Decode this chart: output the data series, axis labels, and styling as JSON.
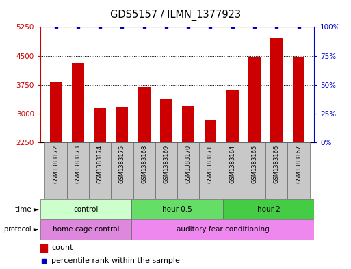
{
  "title": "GDS5157 / ILMN_1377923",
  "samples": [
    "GSM1383172",
    "GSM1383173",
    "GSM1383174",
    "GSM1383175",
    "GSM1383168",
    "GSM1383169",
    "GSM1383170",
    "GSM1383171",
    "GSM1383164",
    "GSM1383165",
    "GSM1383166",
    "GSM1383167"
  ],
  "counts": [
    3820,
    4320,
    3150,
    3160,
    3700,
    3370,
    3190,
    2840,
    3620,
    4480,
    4950,
    4480
  ],
  "percentiles": [
    100,
    100,
    100,
    100,
    100,
    100,
    100,
    100,
    100,
    100,
    100,
    100
  ],
  "ylim_left": [
    2250,
    5250
  ],
  "ylim_right": [
    0,
    100
  ],
  "yticks_left": [
    2250,
    3000,
    3750,
    4500,
    5250
  ],
  "yticks_right": [
    0,
    25,
    50,
    75,
    100
  ],
  "ytick_labels_right": [
    "0%",
    "25%",
    "50%",
    "75%",
    "100%"
  ],
  "bar_color": "#cc0000",
  "percentile_color": "#0000cc",
  "time_groups": [
    {
      "label": "control",
      "start": 0,
      "end": 4,
      "color": "#ccffcc"
    },
    {
      "label": "hour 0.5",
      "start": 4,
      "end": 8,
      "color": "#66dd66"
    },
    {
      "label": "hour 2",
      "start": 8,
      "end": 12,
      "color": "#44cc44"
    }
  ],
  "protocol_groups": [
    {
      "label": "home cage control",
      "start": 0,
      "end": 4,
      "color": "#dd88dd"
    },
    {
      "label": "auditory fear conditioning",
      "start": 4,
      "end": 12,
      "color": "#ee88ee"
    }
  ],
  "bar_width": 0.55,
  "left_axis_color": "#cc0000",
  "right_axis_color": "#0000cc"
}
